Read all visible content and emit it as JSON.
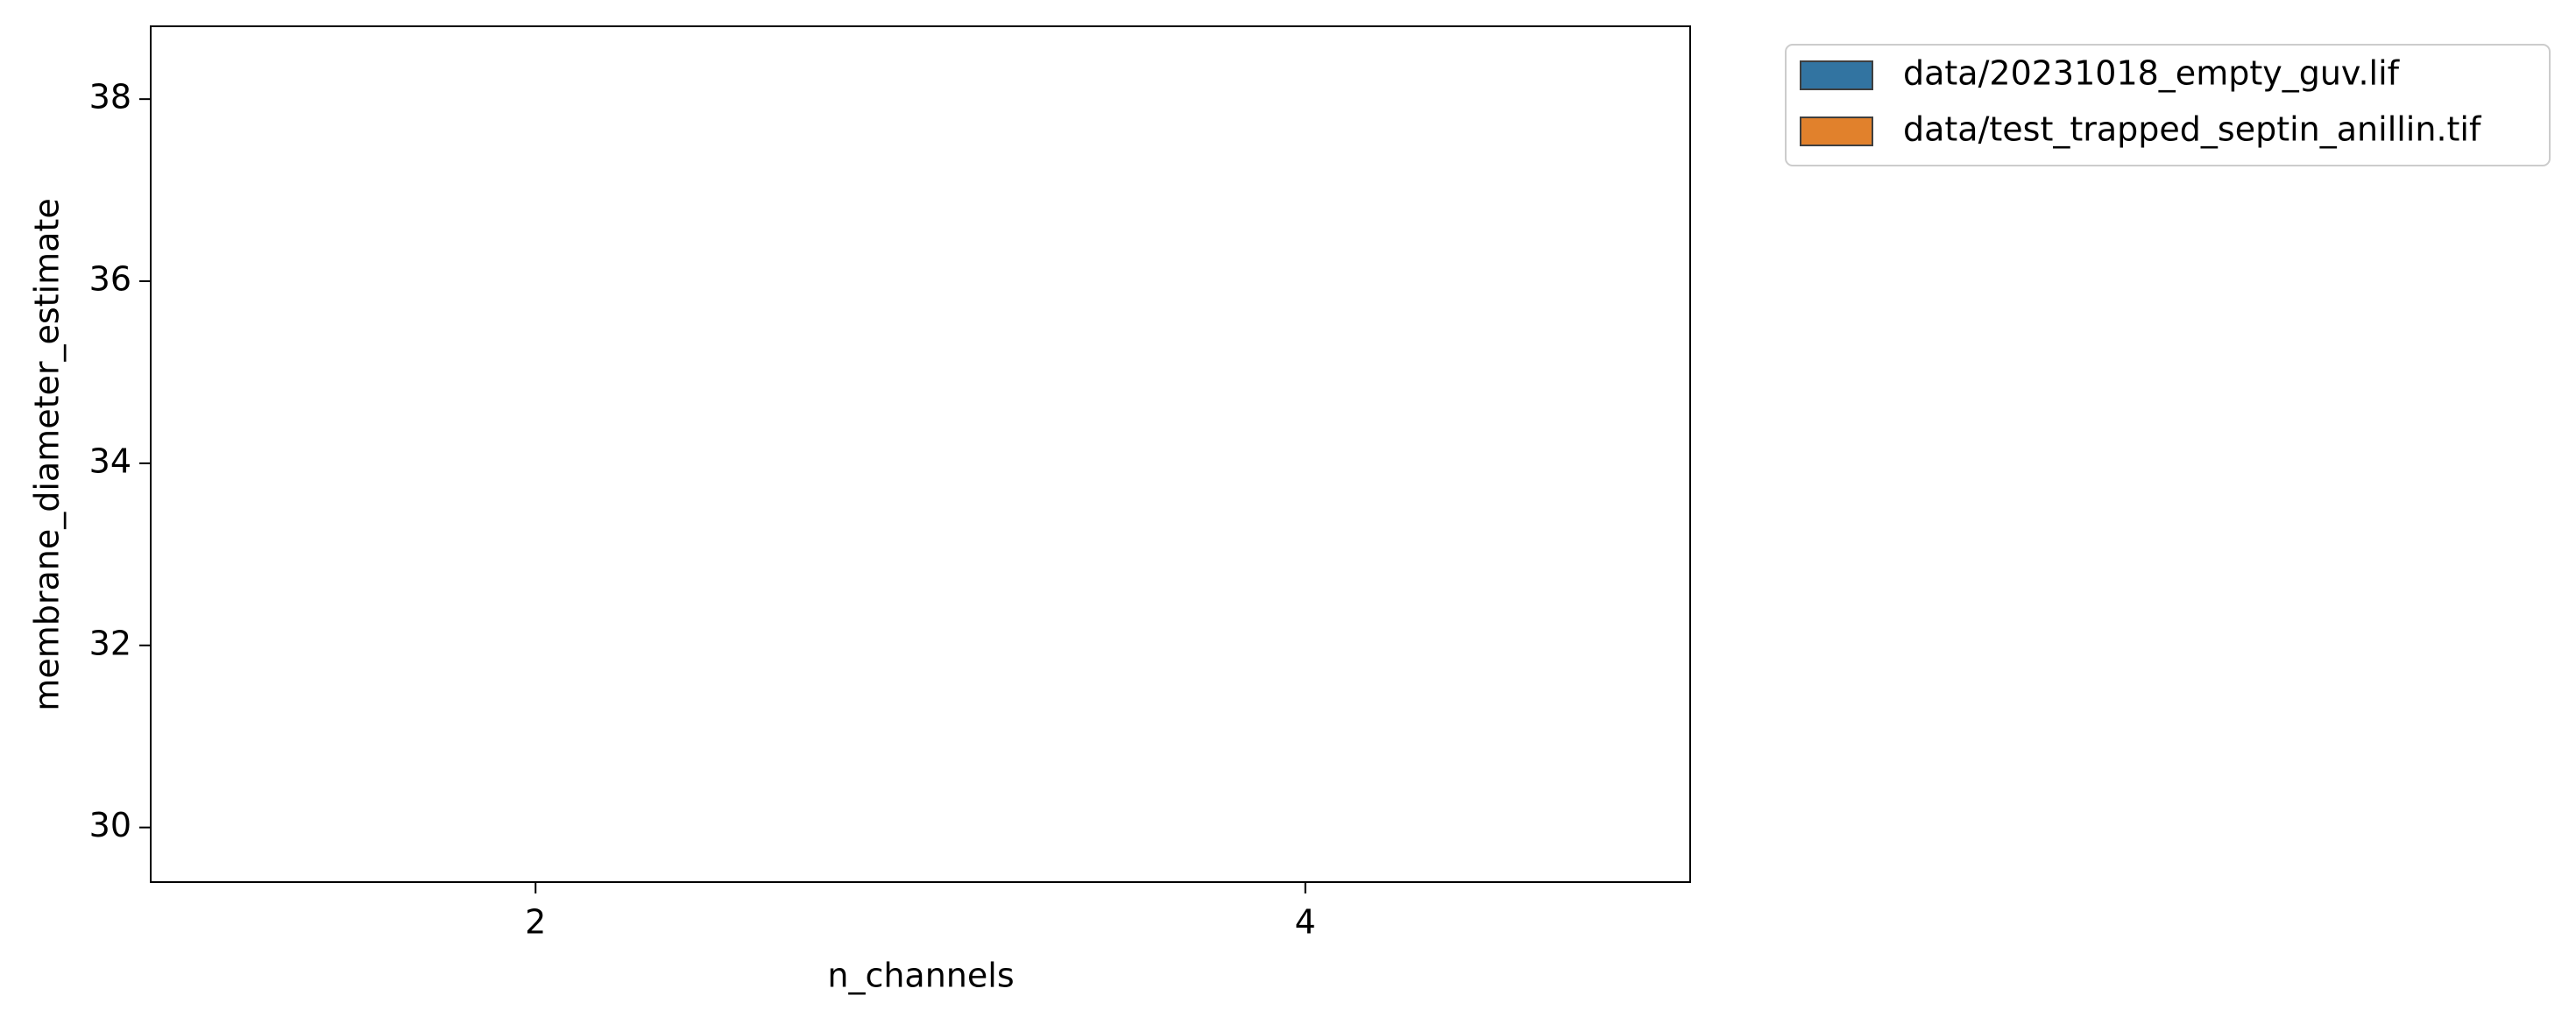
{
  "chart_data": {
    "type": "box",
    "xlabel": "n_channels",
    "ylabel": "membrane_diameter_estimate",
    "categories": [
      "2",
      "4"
    ],
    "series": [
      {
        "name": "data/20231018_empty_guv.lif",
        "color": "#3274a1",
        "values": [
          null,
          null
        ]
      },
      {
        "name": "data/test_trapped_septin_anillin.tif",
        "color": "#e1812c",
        "values": [
          null,
          null
        ]
      }
    ],
    "ylim": [
      29.4,
      38.8
    ],
    "yticks": [
      30,
      32,
      34,
      36,
      38
    ],
    "legend": "outside-upper-right"
  }
}
